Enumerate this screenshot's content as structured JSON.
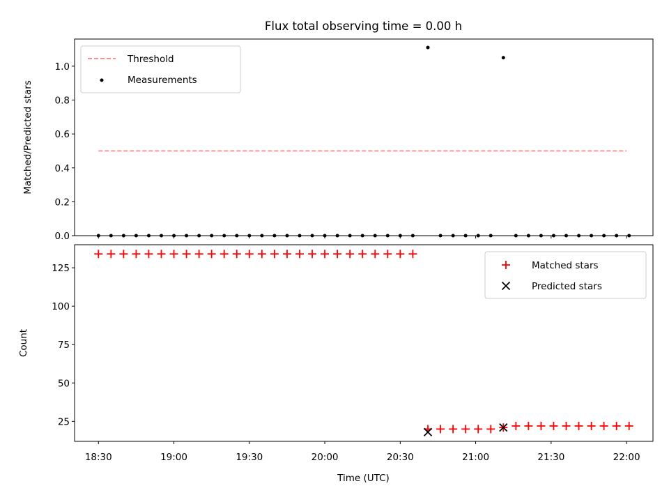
{
  "chart_data": [
    {
      "type": "scatter",
      "panel": "top",
      "title": "Flux total observing time = 0.00 h",
      "ylabel": "Matched/Predicted stars",
      "xlabel": "",
      "ylim": [
        0,
        1.16
      ],
      "yticks": [
        0.0,
        0.2,
        0.4,
        0.6,
        0.8,
        1.0
      ],
      "ytick_labels": [
        "0.0",
        "0.2",
        "0.4",
        "0.6",
        "0.8",
        "1.0"
      ],
      "x_ticks_minutes": [
        1110,
        1140,
        1170,
        1200,
        1230,
        1260,
        1290,
        1320
      ],
      "grid": false,
      "legend_position": "upper-left",
      "threshold": {
        "name": "Threshold",
        "color": "#ff7f7f",
        "y": 0.5,
        "x_range": [
          "18:30",
          "22:00"
        ]
      },
      "measurements": {
        "name": "Measurements",
        "color": "#000000",
        "x": [
          "18:30",
          "18:35",
          "18:40",
          "18:45",
          "18:50",
          "18:55",
          "19:00",
          "19:05",
          "19:10",
          "19:15",
          "19:20",
          "19:25",
          "19:30",
          "19:35",
          "19:40",
          "19:45",
          "19:50",
          "19:55",
          "20:00",
          "20:05",
          "20:10",
          "20:15",
          "20:20",
          "20:25",
          "20:30",
          "20:35",
          "20:41",
          "20:46",
          "20:51",
          "20:56",
          "21:01",
          "21:06",
          "21:11",
          "21:16",
          "21:21",
          "21:26",
          "21:31",
          "21:36",
          "21:41",
          "21:46",
          "21:51",
          "21:56",
          "22:01"
        ],
        "y": [
          0,
          0,
          0,
          0,
          0,
          0,
          0,
          0,
          0,
          0,
          0,
          0,
          0,
          0,
          0,
          0,
          0,
          0,
          0,
          0,
          0,
          0,
          0,
          0,
          0,
          0,
          1.11,
          0,
          0,
          0,
          0,
          0,
          1.05,
          0,
          0,
          0,
          0,
          0,
          0,
          0,
          0,
          0,
          0
        ]
      }
    },
    {
      "type": "scatter",
      "panel": "bottom",
      "title": "",
      "xlabel": "Time (UTC)",
      "ylabel": "Count",
      "ylim": [
        12,
        140
      ],
      "yticks": [
        25,
        50,
        75,
        100,
        125
      ],
      "ytick_labels": [
        "25",
        "50",
        "75",
        "100",
        "125"
      ],
      "x_ticks_minutes": [
        1110,
        1140,
        1170,
        1200,
        1230,
        1260,
        1290,
        1320
      ],
      "xtick_labels": [
        "18:30",
        "19:00",
        "19:30",
        "20:00",
        "20:30",
        "21:00",
        "21:30",
        "22:00"
      ],
      "grid": false,
      "legend_position": "upper-right",
      "series": [
        {
          "name": "Matched stars",
          "marker": "plus",
          "color": "#ff0000",
          "x": [
            "18:30",
            "18:35",
            "18:40",
            "18:45",
            "18:50",
            "18:55",
            "19:00",
            "19:05",
            "19:10",
            "19:15",
            "19:20",
            "19:25",
            "19:30",
            "19:35",
            "19:40",
            "19:45",
            "19:50",
            "19:55",
            "20:00",
            "20:05",
            "20:10",
            "20:15",
            "20:20",
            "20:25",
            "20:30",
            "20:35",
            "20:41",
            "20:46",
            "20:51",
            "20:56",
            "21:01",
            "21:06",
            "21:11",
            "21:16",
            "21:21",
            "21:26",
            "21:31",
            "21:36",
            "21:41",
            "21:46",
            "21:51",
            "21:56",
            "22:01"
          ],
          "y": [
            134,
            134,
            134,
            134,
            134,
            134,
            134,
            134,
            134,
            134,
            134,
            134,
            134,
            134,
            134,
            134,
            134,
            134,
            134,
            134,
            134,
            134,
            134,
            134,
            134,
            134,
            20,
            20,
            20,
            20,
            20,
            20,
            21,
            22,
            22,
            22,
            22,
            22,
            22,
            22,
            22,
            22,
            22
          ]
        },
        {
          "name": "Predicted stars",
          "marker": "x",
          "color": "#000000",
          "x": [
            "20:41",
            "21:11"
          ],
          "y": [
            18,
            21
          ]
        }
      ]
    }
  ]
}
